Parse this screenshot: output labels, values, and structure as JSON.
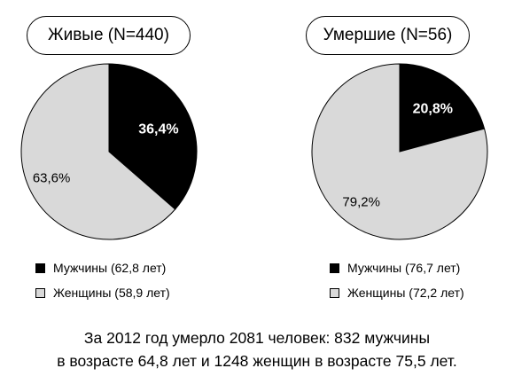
{
  "chart_data": [
    {
      "type": "pie",
      "title": "Живые (N=440)",
      "slices": [
        {
          "label": "Мужчины (62,8 лет)",
          "value": 36.4,
          "display": "36,4%",
          "color": "#000000",
          "label_color": "#ffffff"
        },
        {
          "label": "Женщины (58,9 лет)",
          "value": 63.6,
          "display": "63,6%",
          "color": "#d9d9d9",
          "label_color": "#000000"
        }
      ]
    },
    {
      "type": "pie",
      "title": "Умершие (N=56)",
      "slices": [
        {
          "label": "Мужчины (76,7 лет)",
          "value": 20.8,
          "display": "20,8%",
          "color": "#000000",
          "label_color": "#ffffff"
        },
        {
          "label": "Женщины (72,2 лет)",
          "value": 79.2,
          "display": "79,2%",
          "color": "#d9d9d9",
          "label_color": "#000000"
        }
      ]
    }
  ],
  "caption": {
    "line1": "За 2012 год умерло 2081 человек: 832 мужчины",
    "line2": "в возрасте 64,8 лет и 1248 женщин в возрасте  75,5 лет."
  }
}
